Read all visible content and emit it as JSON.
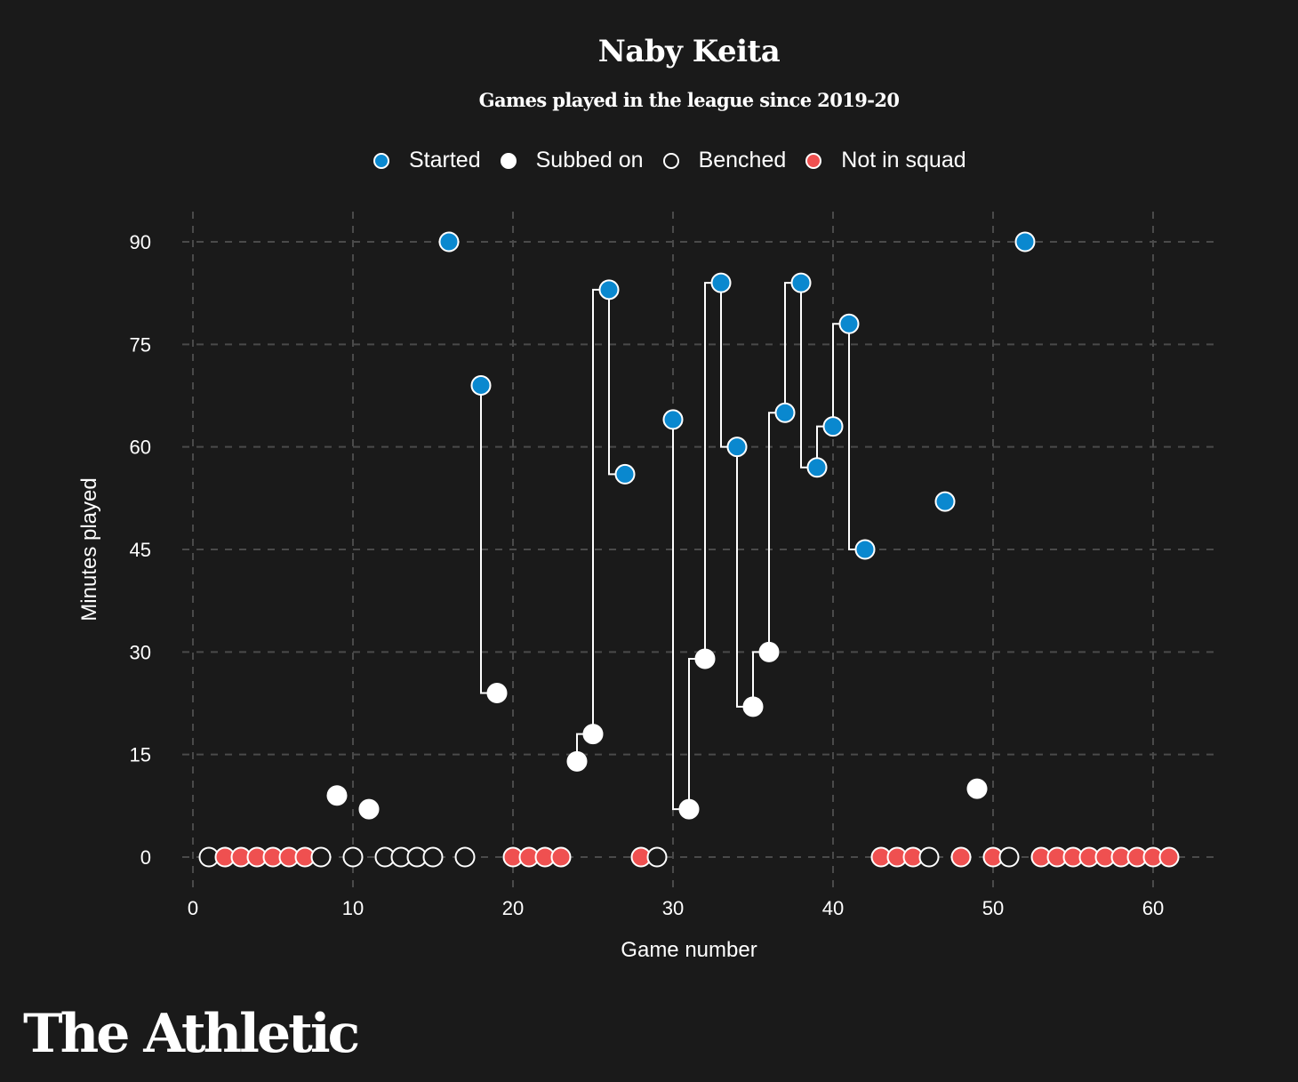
{
  "chart_data": {
    "type": "scatter",
    "title": "Naby Keita",
    "subtitle": "Games played in the league since 2019-20",
    "xlabel": "Game number",
    "ylabel": "Minutes played",
    "xlim": [
      0,
      63
    ],
    "ylim": [
      0,
      90
    ],
    "xticks": [
      0,
      10,
      20,
      30,
      40,
      50,
      60
    ],
    "yticks": [
      0,
      15,
      30,
      45,
      60,
      75,
      90
    ],
    "grid": true,
    "legend_position": "top-center",
    "legend": [
      {
        "key": "started",
        "label": "Started"
      },
      {
        "key": "subbed",
        "label": "Subbed on"
      },
      {
        "key": "benched",
        "label": "Benched"
      },
      {
        "key": "not_in_squad",
        "label": "Not in squad"
      }
    ],
    "colors": {
      "started": "#0a88cf",
      "subbed": "#ffffff",
      "benched": "#1a1a1a",
      "not_in_squad": "#ef5050",
      "stroke": "#ffffff",
      "grid": "#4a4a4a",
      "background": "#1a1a1a"
    },
    "games": [
      {
        "game": 1,
        "status": "benched",
        "minutes": 0
      },
      {
        "game": 2,
        "status": "not_in_squad",
        "minutes": 0
      },
      {
        "game": 3,
        "status": "not_in_squad",
        "minutes": 0
      },
      {
        "game": 4,
        "status": "not_in_squad",
        "minutes": 0
      },
      {
        "game": 5,
        "status": "not_in_squad",
        "minutes": 0
      },
      {
        "game": 6,
        "status": "not_in_squad",
        "minutes": 0
      },
      {
        "game": 7,
        "status": "not_in_squad",
        "minutes": 0
      },
      {
        "game": 8,
        "status": "benched",
        "minutes": 0
      },
      {
        "game": 9,
        "status": "subbed",
        "minutes": 9
      },
      {
        "game": 10,
        "status": "benched",
        "minutes": 0
      },
      {
        "game": 11,
        "status": "subbed",
        "minutes": 7
      },
      {
        "game": 12,
        "status": "benched",
        "minutes": 0
      },
      {
        "game": 13,
        "status": "benched",
        "minutes": 0
      },
      {
        "game": 14,
        "status": "benched",
        "minutes": 0
      },
      {
        "game": 15,
        "status": "benched",
        "minutes": 0
      },
      {
        "game": 16,
        "status": "started",
        "minutes": 90
      },
      {
        "game": 17,
        "status": "benched",
        "minutes": 0
      },
      {
        "game": 18,
        "status": "started",
        "minutes": 69
      },
      {
        "game": 19,
        "status": "subbed",
        "minutes": 24
      },
      {
        "game": 20,
        "status": "not_in_squad",
        "minutes": 0
      },
      {
        "game": 21,
        "status": "not_in_squad",
        "minutes": 0
      },
      {
        "game": 22,
        "status": "not_in_squad",
        "minutes": 0
      },
      {
        "game": 23,
        "status": "not_in_squad",
        "minutes": 0
      },
      {
        "game": 24,
        "status": "subbed",
        "minutes": 14
      },
      {
        "game": 25,
        "status": "subbed",
        "minutes": 18
      },
      {
        "game": 26,
        "status": "started",
        "minutes": 83
      },
      {
        "game": 27,
        "status": "started",
        "minutes": 56
      },
      {
        "game": 28,
        "status": "not_in_squad",
        "minutes": 0
      },
      {
        "game": 29,
        "status": "benched",
        "minutes": 0
      },
      {
        "game": 30,
        "status": "started",
        "minutes": 64
      },
      {
        "game": 31,
        "status": "subbed",
        "minutes": 7
      },
      {
        "game": 32,
        "status": "subbed",
        "minutes": 29
      },
      {
        "game": 33,
        "status": "started",
        "minutes": 84
      },
      {
        "game": 34,
        "status": "started",
        "minutes": 60
      },
      {
        "game": 35,
        "status": "subbed",
        "minutes": 22
      },
      {
        "game": 36,
        "status": "subbed",
        "minutes": 30
      },
      {
        "game": 37,
        "status": "started",
        "minutes": 65
      },
      {
        "game": 38,
        "status": "started",
        "minutes": 84
      },
      {
        "game": 39,
        "status": "started",
        "minutes": 57
      },
      {
        "game": 40,
        "status": "started",
        "minutes": 63
      },
      {
        "game": 41,
        "status": "started",
        "minutes": 78
      },
      {
        "game": 42,
        "status": "started",
        "minutes": 45
      },
      {
        "game": 43,
        "status": "not_in_squad",
        "minutes": 0
      },
      {
        "game": 44,
        "status": "not_in_squad",
        "minutes": 0
      },
      {
        "game": 45,
        "status": "not_in_squad",
        "minutes": 0
      },
      {
        "game": 46,
        "status": "benched",
        "minutes": 0
      },
      {
        "game": 47,
        "status": "started",
        "minutes": 52
      },
      {
        "game": 48,
        "status": "not_in_squad",
        "minutes": 0
      },
      {
        "game": 49,
        "status": "subbed",
        "minutes": 10
      },
      {
        "game": 50,
        "status": "not_in_squad",
        "minutes": 0
      },
      {
        "game": 51,
        "status": "benched",
        "minutes": 0
      },
      {
        "game": 52,
        "status": "started",
        "minutes": 90
      },
      {
        "game": 53,
        "status": "not_in_squad",
        "minutes": 0
      },
      {
        "game": 54,
        "status": "not_in_squad",
        "minutes": 0
      },
      {
        "game": 55,
        "status": "not_in_squad",
        "minutes": 0
      },
      {
        "game": 56,
        "status": "not_in_squad",
        "minutes": 0
      },
      {
        "game": 57,
        "status": "not_in_squad",
        "minutes": 0
      },
      {
        "game": 58,
        "status": "not_in_squad",
        "minutes": 0
      },
      {
        "game": 59,
        "status": "not_in_squad",
        "minutes": 0
      },
      {
        "game": 60,
        "status": "not_in_squad",
        "minutes": 0
      },
      {
        "game": 61,
        "status": "not_in_squad",
        "minutes": 0
      }
    ]
  },
  "brand": {
    "logo_text": "The Athletic"
  }
}
